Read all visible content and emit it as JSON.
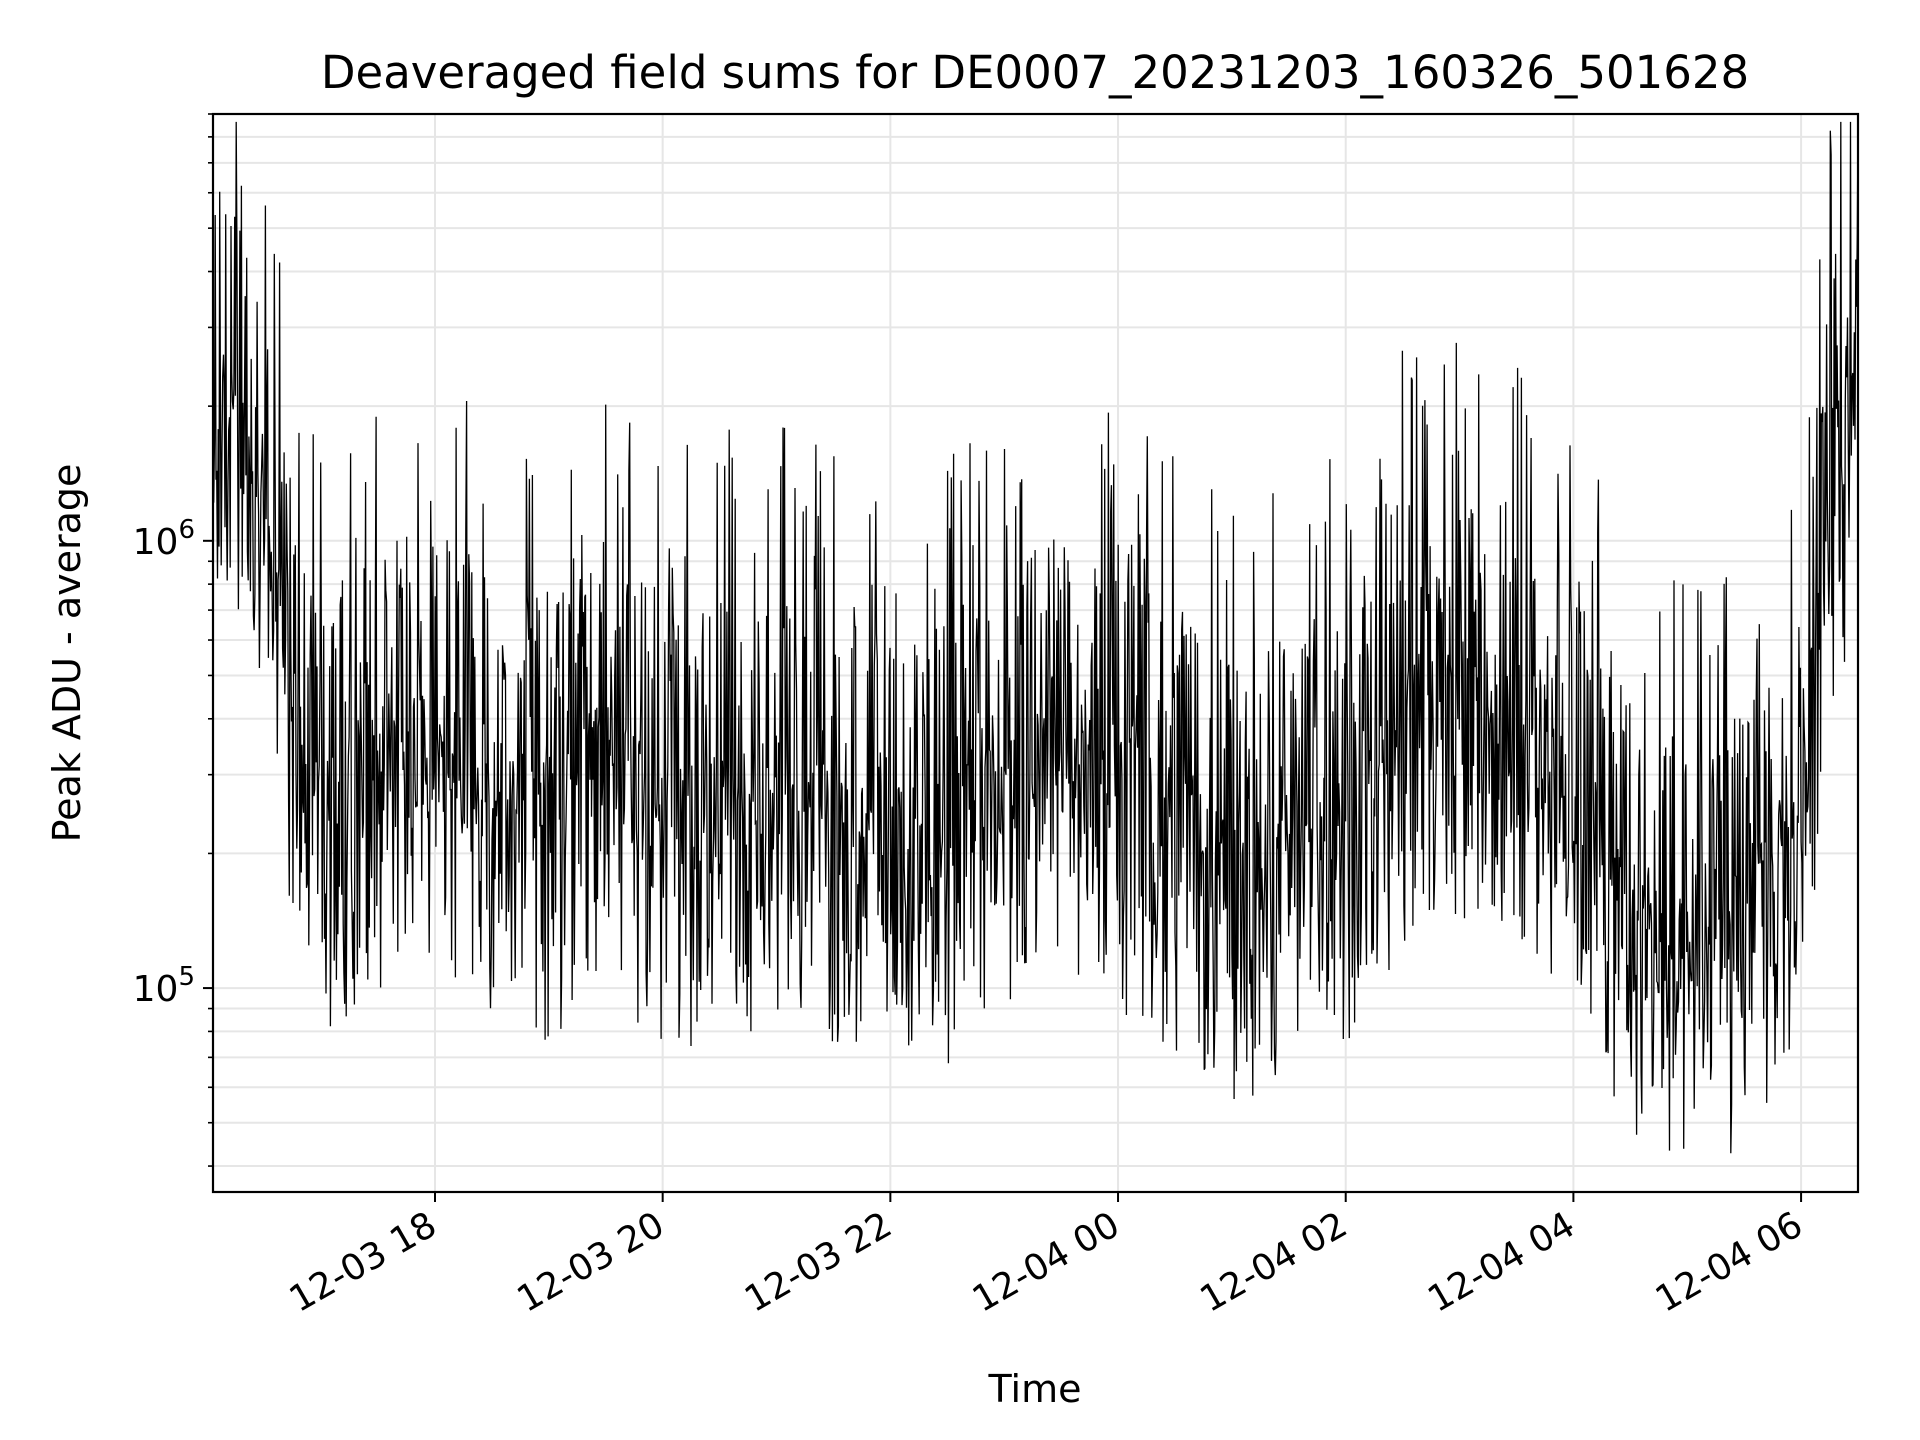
{
  "chart_data": {
    "type": "line",
    "title": "Deaveraged field sums for DE0007_20231203_160326_501628",
    "xlabel": "Time",
    "ylabel": "Peak ADU - average",
    "yscale": "log",
    "grid": true,
    "xlim": [
      "2023-12-03 16:03",
      "2023-12-04 06:30"
    ],
    "ylim": [
      35000,
      9000000
    ],
    "x_ticks": [
      {
        "value": "2023-12-03 18:00",
        "label": "12-03 18"
      },
      {
        "value": "2023-12-03 20:00",
        "label": "12-03 20"
      },
      {
        "value": "2023-12-03 22:00",
        "label": "12-03 22"
      },
      {
        "value": "2023-12-04 00:00",
        "label": "12-04 00"
      },
      {
        "value": "2023-12-04 02:00",
        "label": "12-04 02"
      },
      {
        "value": "2023-12-04 04:00",
        "label": "12-04 04"
      },
      {
        "value": "2023-12-04 06:00",
        "label": "12-04 06"
      }
    ],
    "y_ticks": [
      {
        "value": 100000,
        "base": "10",
        "exp": "5"
      },
      {
        "value": 1000000,
        "base": "10",
        "exp": "6"
      }
    ],
    "series": [
      {
        "color": "#000000",
        "x": [
          "2023-12-03 16:03",
          "2023-12-03 16:10",
          "2023-12-03 16:20",
          "2023-12-03 16:30",
          "2023-12-03 16:40",
          "2023-12-03 16:50",
          "2023-12-03 17:00",
          "2023-12-03 17:15",
          "2023-12-03 17:30",
          "2023-12-03 17:45",
          "2023-12-03 18:00",
          "2023-12-03 18:30",
          "2023-12-03 19:00",
          "2023-12-03 19:30",
          "2023-12-03 20:00",
          "2023-12-03 20:30",
          "2023-12-03 21:00",
          "2023-12-03 21:30",
          "2023-12-03 22:00",
          "2023-12-03 22:30",
          "2023-12-03 23:00",
          "2023-12-03 23:30",
          "2023-12-04 00:00",
          "2023-12-04 00:30",
          "2023-12-04 01:00",
          "2023-12-04 01:30",
          "2023-12-04 02:00",
          "2023-12-04 02:30",
          "2023-12-04 03:00",
          "2023-12-04 03:30",
          "2023-12-04 04:00",
          "2023-12-04 04:30",
          "2023-12-04 05:00",
          "2023-12-04 05:30",
          "2023-12-04 06:00",
          "2023-12-04 06:15",
          "2023-12-04 06:30"
        ],
        "y": [
          1500000,
          1800000,
          1300000,
          900000,
          500000,
          250000,
          200000,
          250000,
          280000,
          300000,
          300000,
          250000,
          200000,
          300000,
          200000,
          220000,
          230000,
          200000,
          180000,
          190000,
          250000,
          300000,
          250000,
          200000,
          150000,
          180000,
          200000,
          350000,
          400000,
          350000,
          250000,
          130000,
          100000,
          120000,
          200000,
          1200000,
          1800000
        ]
      }
    ]
  }
}
